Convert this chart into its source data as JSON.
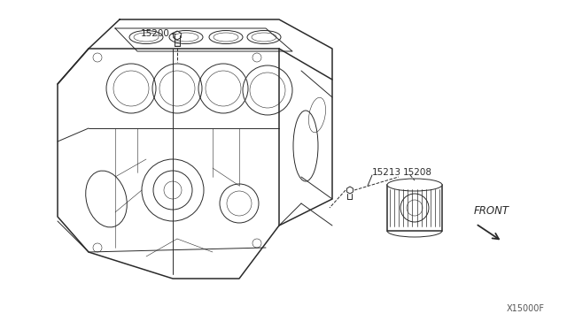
{
  "bg_color": "#ffffff",
  "line_color": "#2a2a2a",
  "label_color": "#2a2a2a",
  "fig_width": 6.4,
  "fig_height": 3.72,
  "dpi": 100,
  "front_text": "FRONT",
  "ref_text": "X15000F",
  "labels": {
    "15200": [
      0.235,
      0.855
    ],
    "15213": [
      0.595,
      0.475
    ],
    "15208": [
      0.635,
      0.525
    ]
  }
}
